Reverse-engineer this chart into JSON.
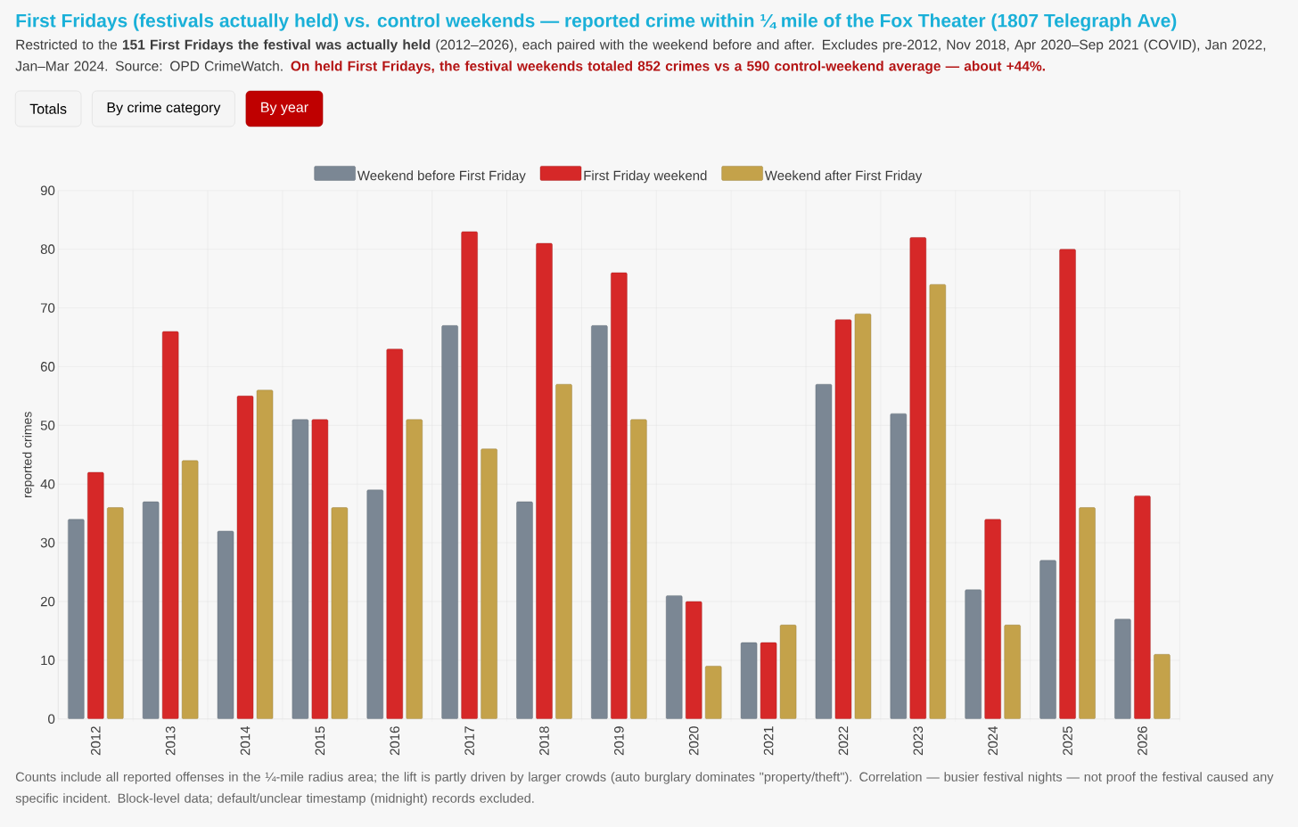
{
  "chart_data": {
    "type": "bar",
    "title": "First Fridays (festivals actually held) vs. control weekends — reported crime within ¼ mile of the Fox Theater (1807 Telegraph Ave)",
    "subtitle": "Restricted to the **151 First Fridays the festival was actually held** (2012–2026), each paired with the weekend before and after. Excludes pre-2012, Nov 2018, Apr 2020–Sep 2021 (COVID), Jan 2022, Jan–Mar 2024. Source: OPD CrimeWatch.",
    "annotations": [
      "On held First Fridays, the festival weekends totaled 852 crimes vs a 590 control-weekend average — about +44%.",
      "Counts include all reported offenses in the ¼-mile radius area; the lift is partly driven by larger crowds (auto burglary dominates \"property/theft\"). Correlation — busier festival nights — not proof the festival caused any specific incident. Block-level data; default/unclear timestamp (midnight) records excluded.",
      "Totals",
      "By crime category",
      "By year"
    ],
    "ylabel": "reported crimes",
    "categories": [
      "2012",
      "2013",
      "2014",
      "2015",
      "2016",
      "2017",
      "2018",
      "2019",
      "2020",
      "2021",
      "2022",
      "2023",
      "2024",
      "2025",
      "2026"
    ],
    "series": [
      {
        "name": "Weekend before First Friday",
        "color": "#7b8794",
        "values": [
          34,
          37,
          32,
          51,
          39,
          67,
          37,
          67,
          21,
          13,
          57,
          52,
          22,
          27,
          17
        ]
      },
      {
        "name": "First Friday weekend",
        "color": "#d62828",
        "values": [
          42,
          66,
          55,
          51,
          63,
          83,
          81,
          76,
          20,
          13,
          68,
          82,
          34,
          80,
          38
        ]
      },
      {
        "name": "Weekend after First Friday",
        "color": "#c4a24a",
        "values": [
          36,
          44,
          56,
          36,
          51,
          46,
          57,
          51,
          9,
          16,
          69,
          74,
          16,
          36,
          11
        ]
      }
    ],
    "ylim": [
      0,
      90
    ],
    "yticks": [
      0,
      10,
      20,
      30,
      40,
      50,
      60,
      70,
      80,
      90
    ],
    "grid": true,
    "legend": "top"
  }
}
